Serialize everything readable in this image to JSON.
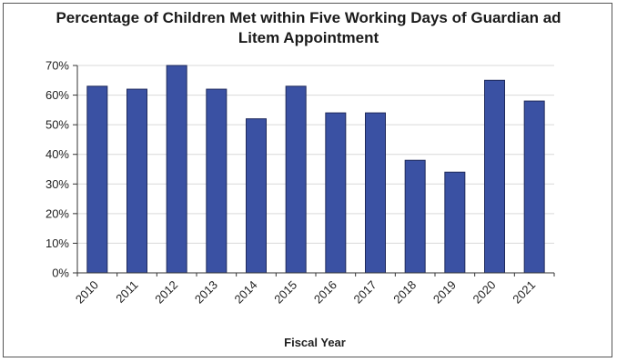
{
  "chart_data": {
    "type": "bar",
    "title_lines": [
      "Percentage of Children Met within Five Working Days of Guardian ad",
      "Litem Appointment"
    ],
    "xlabel": "Fiscal Year",
    "ylabel": "",
    "categories": [
      "2010",
      "2011",
      "2012",
      "2013",
      "2014",
      "2015",
      "2016",
      "2017",
      "2018",
      "2019",
      "2020",
      "2021"
    ],
    "values": [
      63,
      62,
      70,
      62,
      52,
      63,
      54,
      54,
      38,
      34,
      65,
      58
    ],
    "ylim": [
      0,
      70
    ],
    "yticks": [
      "0%",
      "10%",
      "20%",
      "30%",
      "40%",
      "50%",
      "60%",
      "70%"
    ],
    "bar_color": "#3a51a3",
    "grid": true,
    "legend": "none"
  }
}
